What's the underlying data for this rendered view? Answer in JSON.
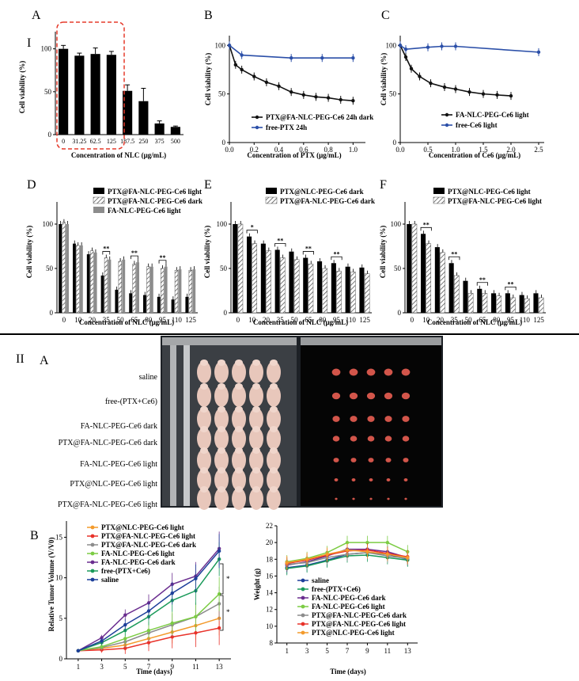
{
  "figure": {
    "part_I_label": "I",
    "part_II_label": "II"
  },
  "panel_A": {
    "letter": "A",
    "ylabel": "Cell viability (%)",
    "xlabel": "Concentration of NLC (μg/mL)",
    "yticks": [
      "0",
      "50",
      "100"
    ],
    "categories": [
      "0",
      "31.25",
      "62.5",
      "125",
      "187.5",
      "250",
      "375",
      "500"
    ],
    "values": [
      100,
      92,
      94,
      93,
      51,
      39,
      13,
      9
    ],
    "errors": [
      4,
      3,
      7,
      4,
      7,
      15,
      3,
      1
    ]
  },
  "panel_B": {
    "letter": "B",
    "ylabel": "Cell viability (%)",
    "xlabel": "Concentration of PTX (μg/mL)",
    "xticks": [
      "0.0",
      "0.2",
      "0.4",
      "0.6",
      "0.8",
      "1.0"
    ],
    "yticks": [
      "0",
      "50",
      "100"
    ],
    "series": [
      {
        "name": "PTX@FA-NLC-PEG-Ce6 24h dark",
        "color": "#111111",
        "x": [
          0,
          0.05,
          0.1,
          0.2,
          0.3,
          0.4,
          0.5,
          0.6,
          0.7,
          0.8,
          0.9,
          1.0
        ],
        "y": [
          100,
          80,
          75,
          68,
          62,
          58,
          52,
          49,
          47,
          46,
          44,
          43
        ]
      },
      {
        "name": "free-PTX 24h",
        "color": "#2b4fa8",
        "x": [
          0,
          0.1,
          0.5,
          0.75,
          1.0
        ],
        "y": [
          100,
          90,
          87,
          87,
          87
        ]
      }
    ]
  },
  "panel_C": {
    "letter": "C",
    "ylabel": "Cell viability (%)",
    "xlabel": "Concentration of Ce6 (μg/mL)",
    "xticks": [
      "0.0",
      "0.5",
      "1.0",
      "1.5",
      "2.0",
      "2.5"
    ],
    "yticks": [
      "0",
      "50",
      "100"
    ],
    "series": [
      {
        "name": "FA-NLC-PEG-Ce6 light",
        "color": "#111111",
        "x": [
          0,
          0.1,
          0.2,
          0.35,
          0.55,
          0.8,
          1.0,
          1.25,
          1.5,
          1.75,
          2.0
        ],
        "y": [
          100,
          88,
          76,
          68,
          61,
          57,
          55,
          52,
          50,
          49,
          48
        ]
      },
      {
        "name": "free-Ce6 light",
        "color": "#2b4fa8",
        "x": [
          0,
          0.1,
          0.5,
          0.75,
          1.0,
          2.5
        ],
        "y": [
          100,
          96,
          98,
          99,
          99,
          93
        ]
      }
    ]
  },
  "panel_D": {
    "letter": "D",
    "ylabel": "Cell viability (%)",
    "xlabel": "Concentration of NLC (μg/mL)",
    "yticks": [
      "0",
      "50",
      "100"
    ],
    "categories": [
      "0",
      "10",
      "20",
      "35",
      "50",
      "65",
      "80",
      "95",
      "110",
      "125"
    ],
    "legend": [
      "PTX@FA-NLC-PEG-Ce6 light",
      "PTX@FA-NLC-PEG-Ce6 dark",
      "FA-NLC-PEG-Ce6 light"
    ],
    "series": [
      {
        "name": "PTX@FA-NLC-PEG-Ce6 light",
        "values": [
          100,
          78,
          66,
          42,
          26,
          22,
          20,
          18,
          15,
          18
        ]
      },
      {
        "name": "PTX@FA-NLC-PEG-Ce6 dark",
        "values": [
          102,
          76,
          70,
          62,
          58,
          55,
          52,
          50,
          48,
          48
        ]
      },
      {
        "name": "FA-NLC-PEG-Ce6 light",
        "values": [
          100,
          76,
          68,
          60,
          60,
          57,
          52,
          52,
          49,
          49
        ]
      }
    ],
    "sig": [
      {
        "at": 3,
        "label": "**"
      },
      {
        "at": 5,
        "label": "**"
      },
      {
        "at": 7,
        "label": "**"
      }
    ]
  },
  "panel_E": {
    "letter": "E",
    "ylabel": "Cell viability (%)",
    "xlabel": "Concentration of NLC (μg/mL)",
    "yticks": [
      "0",
      "50",
      "100"
    ],
    "categories": [
      "0",
      "10",
      "20",
      "35",
      "50",
      "65",
      "80",
      "95",
      "110",
      "125"
    ],
    "legend": [
      "PTX@NLC-PEG-Ce6 dark",
      "PTX@FA-NLC-PEG-Ce6 dark"
    ],
    "series": [
      {
        "name": "PTX@NLC-PEG-Ce6 dark",
        "values": [
          100,
          86,
          78,
          71,
          69,
          62,
          58,
          56,
          52,
          51
        ]
      },
      {
        "name": "PTX@FA-NLC-PEG-Ce6 dark",
        "values": [
          100,
          78,
          70,
          62,
          60,
          55,
          50,
          47,
          46,
          44
        ]
      }
    ],
    "sig": [
      {
        "at": 1,
        "label": "*"
      },
      {
        "at": 3,
        "label": "**"
      },
      {
        "at": 5,
        "label": "**"
      },
      {
        "at": 7,
        "label": "**"
      }
    ]
  },
  "panel_F": {
    "letter": "F",
    "ylabel": "Cell viability (%)",
    "xlabel": "Concentration of NLC (μg/mL)",
    "yticks": [
      "0",
      "50",
      "100"
    ],
    "categories": [
      "0",
      "10",
      "20",
      "35",
      "50",
      "65",
      "80",
      "95",
      "110",
      "125"
    ],
    "legend": [
      "PTX@NLC-PEG-Ce6 light",
      "PTX@FA-NLC-PEG-Ce6 light"
    ],
    "series": [
      {
        "name": "PTX@NLC-PEG-Ce6 light",
        "values": [
          100,
          89,
          74,
          56,
          36,
          27,
          22,
          22,
          20,
          22
        ]
      },
      {
        "name": "PTX@FA-NLC-PEG-Ce6 light",
        "values": [
          100,
          78,
          68,
          42,
          22,
          22,
          19,
          17,
          16,
          17
        ]
      }
    ],
    "sig": [
      {
        "at": 1,
        "label": "**"
      },
      {
        "at": 3,
        "label": "**"
      },
      {
        "at": 5,
        "label": "**"
      },
      {
        "at": 7,
        "label": "**"
      }
    ]
  },
  "panel_IIA": {
    "letter": "A",
    "row_labels": [
      "saline",
      "free-(PTX+Ce6)",
      "FA-NLC-PEG-Ce6 dark",
      "PTX@FA-NLC-PEG-Ce6 dark",
      "FA-NLC-PEG-Ce6 light",
      "PTX@NLC-PEG-Ce6 light",
      "PTX@FA-NLC-PEG-Ce6 light"
    ],
    "tumor_sizes": [
      1,
      0.95,
      0.85,
      0.8,
      0.65,
      0.45,
      0.3
    ]
  },
  "panel_IIB": {
    "letter": "B",
    "tumor": {
      "ylabel": "Relative Tumor Volume (V/V0)",
      "xlabel": "Time (days)",
      "xticks": [
        "1",
        "3",
        "5",
        "7",
        "9",
        "11",
        "13"
      ],
      "yticks": [
        "0",
        "5",
        "10",
        "15"
      ],
      "x": [
        1,
        3,
        5,
        7,
        9,
        11,
        13
      ],
      "series": [
        {
          "name": "PTX@NLC-PEG-Ce6 light",
          "color": "#f39a2b",
          "y": [
            1,
            1.3,
            1.7,
            2.5,
            3.3,
            4.1,
            5.0
          ]
        },
        {
          "name": "PTX@FA-NLC-PEG-Ce6 light",
          "color": "#e8322a",
          "y": [
            1,
            1.1,
            1.3,
            2.0,
            2.7,
            3.2,
            3.8
          ]
        },
        {
          "name": "PTX@FA-NLC-PEG-Ce6 dark",
          "color": "#8c8c8c",
          "y": [
            1,
            1.4,
            2.1,
            3.2,
            4.2,
            5.2,
            6.8
          ]
        },
        {
          "name": "FA-NLC-PEG-Ce6 light",
          "color": "#7ccc44",
          "y": [
            1,
            1.5,
            2.5,
            3.5,
            4.4,
            5.2,
            8.0
          ]
        },
        {
          "name": "FA-NLC-PEG-Ce6 dark",
          "color": "#6a2d8f",
          "y": [
            1,
            2.6,
            5.4,
            6.9,
            9.2,
            10.2,
            13.6
          ]
        },
        {
          "name": "free-(PTX+Ce6)",
          "color": "#1a9a5a",
          "y": [
            1,
            2.0,
            3.5,
            5.2,
            7.2,
            8.4,
            12.3
          ]
        },
        {
          "name": "saline",
          "color": "#1d3f9a",
          "y": [
            1,
            2.2,
            4.2,
            5.9,
            8.1,
            9.9,
            13.3
          ]
        }
      ],
      "sig": [
        "*",
        "*"
      ]
    },
    "weight": {
      "ylabel": "Weight (g)",
      "xlabel": "Time (days)",
      "xticks": [
        "1",
        "3",
        "5",
        "7",
        "9",
        "11",
        "13"
      ],
      "yticks": [
        "8",
        "10",
        "12",
        "14",
        "16",
        "18",
        "20",
        "22"
      ],
      "x": [
        1,
        3,
        5,
        7,
        9,
        11,
        13
      ],
      "series": [
        {
          "name": "saline",
          "color": "#1d3f9a",
          "y": [
            17.0,
            17.3,
            17.9,
            18.6,
            18.8,
            18.6,
            18.0
          ]
        },
        {
          "name": "free-(PTX+Ce6)",
          "color": "#1a9a5a",
          "y": [
            16.9,
            17.2,
            17.8,
            18.4,
            18.5,
            18.2,
            17.9
          ]
        },
        {
          "name": "FA-NLC-PEG-Ce6 dark",
          "color": "#6a2d8f",
          "y": [
            17.3,
            17.7,
            18.4,
            19.2,
            19.2,
            18.9,
            18.2
          ]
        },
        {
          "name": "FA-NLC-PEG-Ce6 light",
          "color": "#7ccc44",
          "y": [
            17.7,
            18.1,
            18.8,
            20.0,
            20.0,
            20.0,
            18.9
          ]
        },
        {
          "name": "PTX@FA-NLC-PEG-Ce6 dark",
          "color": "#8c8c8c",
          "y": [
            17.4,
            17.6,
            18.2,
            18.6,
            18.8,
            18.4,
            18.1
          ]
        },
        {
          "name": "PTX@FA-NLC-PEG-Ce6 light",
          "color": "#e8322a",
          "y": [
            17.5,
            17.9,
            18.5,
            19.0,
            19.1,
            18.7,
            18.3
          ]
        },
        {
          "name": "PTX@NLC-PEG-Ce6 light",
          "color": "#f39a2b",
          "y": [
            17.6,
            18.0,
            18.6,
            19.1,
            18.9,
            18.6,
            18.2
          ]
        }
      ]
    }
  }
}
